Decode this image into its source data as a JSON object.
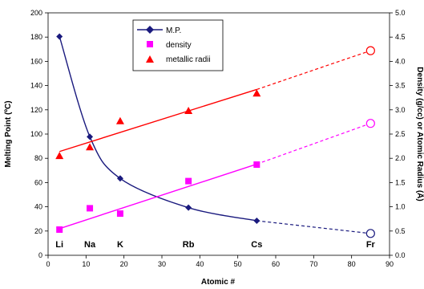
{
  "chart_data": {
    "type": "line",
    "x": [
      3,
      11,
      19,
      37,
      55
    ],
    "element_labels": [
      {
        "name": "Li",
        "x": 3
      },
      {
        "name": "Na",
        "x": 11
      },
      {
        "name": "K",
        "x": 19
      },
      {
        "name": "Rb",
        "x": 37
      },
      {
        "name": "Cs",
        "x": 55
      },
      {
        "name": "Fr",
        "x": 85
      }
    ],
    "xlabel": "Atomic #",
    "ylabel_left": "Melting Point (ºC)",
    "ylabel_right": "Density (g/cc) or Atomic Radius (Å)",
    "xlim": [
      0,
      90
    ],
    "ylim_left": [
      0,
      200
    ],
    "ylim_right": [
      0,
      5
    ],
    "x_ticks": [
      "0",
      "10",
      "20",
      "30",
      "40",
      "50",
      "60",
      "70",
      "80",
      "90"
    ],
    "y_left_ticks": [
      "0",
      "20",
      "40",
      "60",
      "80",
      "100",
      "120",
      "140",
      "160",
      "180",
      "200"
    ],
    "y_right_ticks": [
      "0.0",
      "0.5",
      "1.0",
      "1.5",
      "2.0",
      "2.5",
      "3.0",
      "3.5",
      "4.0",
      "4.5",
      "5.0"
    ],
    "grid": false,
    "legend_position": "top-left",
    "series": [
      {
        "name": "M.P.",
        "axis": "left",
        "marker": "diamond",
        "color": "#1a1a7e",
        "x": [
          3,
          11,
          19,
          37,
          55
        ],
        "values": [
          180.5,
          97.8,
          63.4,
          39.3,
          28.5
        ],
        "extrapolated": {
          "x": 85,
          "value": 18
        }
      },
      {
        "name": "density",
        "axis": "right",
        "marker": "square",
        "color": "#ff00ff",
        "x": [
          3,
          11,
          19,
          37,
          55
        ],
        "values": [
          0.53,
          0.97,
          0.86,
          1.53,
          1.87
        ],
        "fit": {
          "x0": 3,
          "y0": 0.55,
          "x1": 55,
          "y1": 1.88
        },
        "extrapolated": {
          "x": 85,
          "value": 2.72
        }
      },
      {
        "name": "metallic radii",
        "axis": "right",
        "marker": "triangle",
        "color": "#ff0000",
        "x": [
          3,
          11,
          19,
          37,
          55
        ],
        "values": [
          2.05,
          2.23,
          2.77,
          2.98,
          3.34
        ],
        "fit": {
          "x0": 3,
          "y0": 2.14,
          "x1": 55,
          "y1": 3.42
        },
        "extrapolated": {
          "x": 85,
          "value": 4.22
        }
      }
    ]
  }
}
